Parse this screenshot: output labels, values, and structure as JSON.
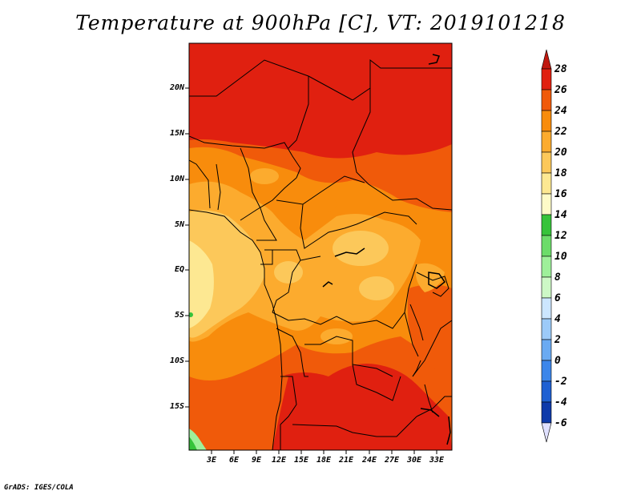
{
  "title": "Temperature at 900hPa [C], VT: 2019101218",
  "lat_labels": [
    "20N",
    "15N",
    "10N",
    "5N",
    "EQ",
    "5S",
    "10S",
    "15S"
  ],
  "lon_labels": [
    "3E",
    "6E",
    "9E",
    "12E",
    "15E",
    "18E",
    "21E",
    "24E",
    "27E",
    "30E",
    "33E"
  ],
  "colorbar": {
    "labels": [
      "28",
      "26",
      "24",
      "22",
      "20",
      "18",
      "16",
      "14",
      "12",
      "10",
      "8",
      "6",
      "4",
      "2",
      "0",
      "-2",
      "-4",
      "-6"
    ],
    "colors": [
      "#e02010",
      "#f05a0a",
      "#f88c0c",
      "#fcab2e",
      "#fcc85a",
      "#fde892",
      "#fefbc8",
      "#36c33a",
      "#6cdc6a",
      "#9ef09a",
      "#cdf8c6",
      "#cce6ff",
      "#9ccaf8",
      "#6aaaf2",
      "#3c86ea",
      "#1e60d2",
      "#0e3aaa",
      "#060a72"
    ],
    "top_arrow_color": "#c01810",
    "bottom_arrow_color": "#dfe0ff"
  },
  "footer": "GrADS: IGES/COLA"
}
